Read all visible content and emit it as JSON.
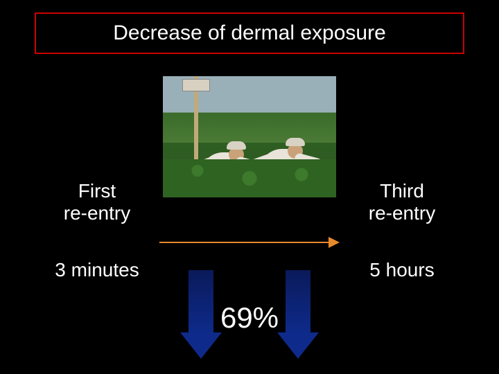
{
  "title": "Decrease of dermal exposure",
  "left": {
    "label_line1": "First",
    "label_line2": "re-entry",
    "time": "3 minutes"
  },
  "right": {
    "label_line1": "Third",
    "label_line2": "re-entry",
    "time": "5 hours"
  },
  "percent": "69%",
  "colors": {
    "background": "#000000",
    "title_border": "#cc0000",
    "text": "#ffffff",
    "h_arrow": "#e98a2a",
    "down_arrow_top": "#0a1a5a",
    "down_arrow_bottom": "#0e2a8a"
  },
  "fonts": {
    "title_pt": 30,
    "body_pt": 28,
    "percent_pt": 42,
    "family": "Arial"
  },
  "image": {
    "description": "two field workers in white protective suits among green crops with a sign post",
    "sky_color": "#9ab0b8",
    "field_color": "#3b6b2a",
    "foliage_color": "#2f6322",
    "suit_color": "#e8e4da"
  },
  "layout": {
    "slide_width": 720,
    "slide_height": 540
  }
}
